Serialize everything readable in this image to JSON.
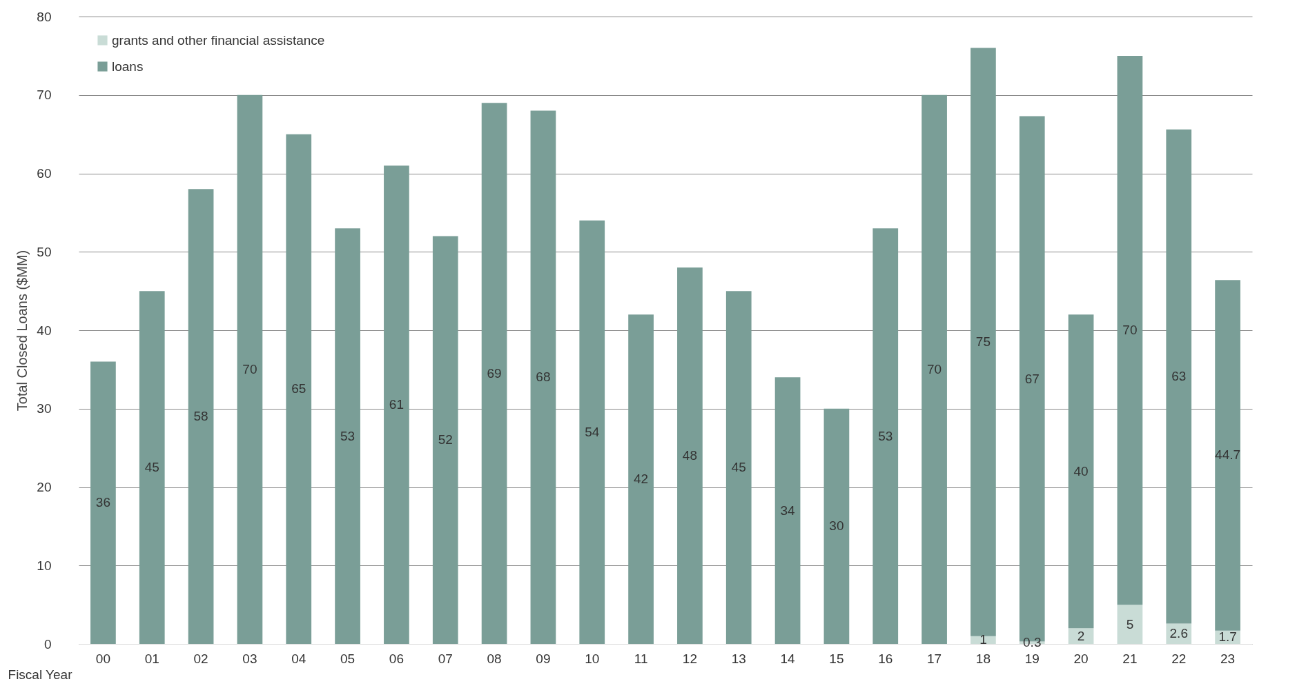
{
  "chart_data": {
    "type": "bar",
    "stacked": true,
    "xlabel": "Fiscal Year",
    "ylabel": "Total Closed Loans ($MM)",
    "categories": [
      "00",
      "01",
      "02",
      "03",
      "04",
      "05",
      "06",
      "07",
      "08",
      "09",
      "10",
      "11",
      "12",
      "13",
      "14",
      "15",
      "16",
      "17",
      "18",
      "19",
      "20",
      "21",
      "22",
      "23"
    ],
    "series": [
      {
        "name": "grants and other financial assistance",
        "color": "#c9dcd6",
        "values": [
          null,
          null,
          null,
          null,
          null,
          null,
          null,
          null,
          null,
          null,
          null,
          null,
          null,
          null,
          null,
          null,
          null,
          null,
          1,
          0.3,
          2,
          5,
          2.6,
          1.7
        ]
      },
      {
        "name": "loans",
        "color": "#7a9e97",
        "values": [
          36,
          45,
          58,
          70,
          65,
          53,
          61,
          52,
          69,
          68,
          54,
          42,
          48,
          45,
          34,
          30,
          53,
          70,
          75,
          67,
          40,
          70,
          63,
          44.7
        ]
      }
    ],
    "ylim": [
      0,
      80
    ],
    "yticks": [
      0,
      10,
      20,
      30,
      40,
      50,
      60,
      70,
      80
    ],
    "grid": "y",
    "legend": "top left",
    "data_labels": true
  }
}
